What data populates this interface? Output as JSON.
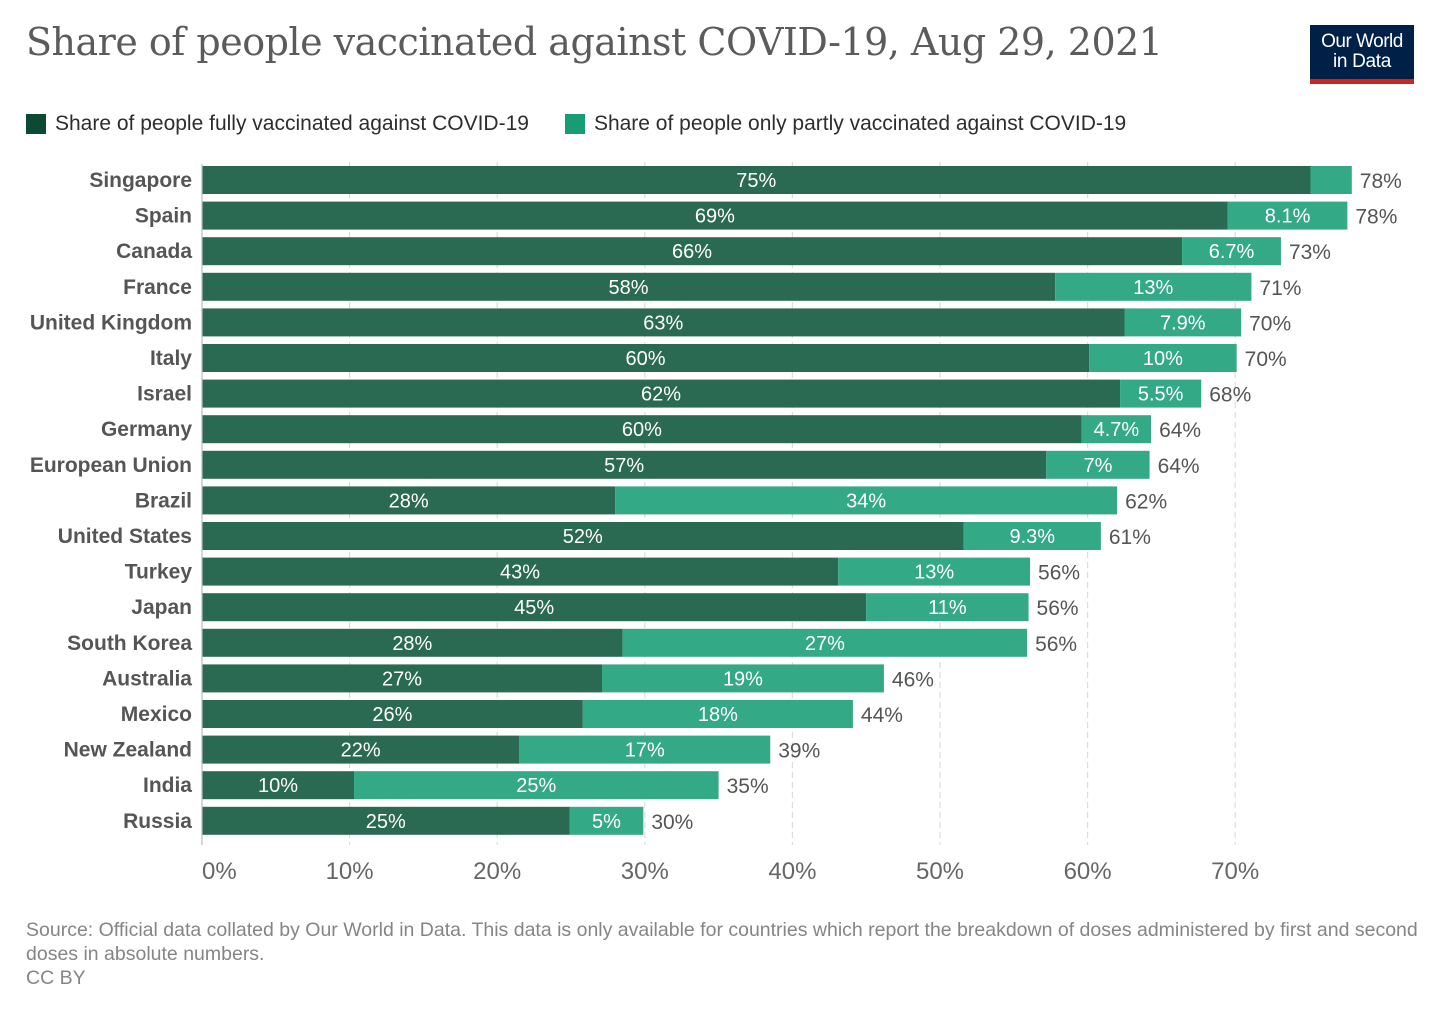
{
  "header": {
    "title": "Share of people vaccinated against COVID-19, Aug 29, 2021",
    "logo_line1": "Our World",
    "logo_line2": "in Data"
  },
  "footer": {
    "source": "Source: Official data collated by Our World in Data. This data is only available for countries which report the breakdown of doses administered by first and second doses in absolute numbers.",
    "license": "CC BY"
  },
  "colors": {
    "fully": "#2a6a52",
    "partly": "#33aa85",
    "legend_fully": "#0c4a34",
    "legend_partly": "#169d74",
    "logo_bg": "#002147",
    "logo_accent": "#ce261e"
  },
  "chart_data": {
    "type": "bar",
    "orientation": "horizontal",
    "stacked": true,
    "title": "Share of people vaccinated against COVID-19, Aug 29, 2021",
    "xlabel": "",
    "ylabel": "",
    "xlim": [
      0,
      78
    ],
    "grid": true,
    "legend_position": "top-left",
    "x_ticks": [
      "0%",
      "10%",
      "20%",
      "30%",
      "40%",
      "50%",
      "60%",
      "70%"
    ],
    "x_tick_values": [
      0,
      10,
      20,
      30,
      40,
      50,
      60,
      70
    ],
    "categories": [
      "Singapore",
      "Spain",
      "Canada",
      "France",
      "United Kingdom",
      "Italy",
      "Israel",
      "Germany",
      "European Union",
      "Brazil",
      "United States",
      "Turkey",
      "Japan",
      "South Korea",
      "Australia",
      "Mexico",
      "New Zealand",
      "India",
      "Russia"
    ],
    "series": [
      {
        "name": "Share of people fully vaccinated against COVID-19",
        "values": [
          75.1,
          69.5,
          66.4,
          57.8,
          62.5,
          60.1,
          62.2,
          59.6,
          57.2,
          28.0,
          51.6,
          43.1,
          45.0,
          28.5,
          27.1,
          25.8,
          21.5,
          10.3,
          24.9
        ],
        "labels": [
          "75%",
          "69%",
          "66%",
          "58%",
          "63%",
          "60%",
          "62%",
          "60%",
          "57%",
          "28%",
          "52%",
          "43%",
          "45%",
          "28%",
          "27%",
          "26%",
          "22%",
          "10%",
          "25%"
        ]
      },
      {
        "name": "Share of people only partly vaccinated against COVID-19",
        "values": [
          2.8,
          8.1,
          6.7,
          13.3,
          7.9,
          10.0,
          5.5,
          4.7,
          7.0,
          34.0,
          9.3,
          13.0,
          11.0,
          27.4,
          19.1,
          18.3,
          17.0,
          24.7,
          5.0
        ],
        "labels": [
          "",
          "8.1%",
          "6.7%",
          "13%",
          "7.9%",
          "10%",
          "5.5%",
          "4.7%",
          "7%",
          "34%",
          "9.3%",
          "13%",
          "11%",
          "27%",
          "19%",
          "18%",
          "17%",
          "25%",
          "5%"
        ]
      }
    ],
    "totals": [
      "78%",
      "78%",
      "73%",
      "71%",
      "70%",
      "70%",
      "68%",
      "64%",
      "64%",
      "62%",
      "61%",
      "56%",
      "56%",
      "56%",
      "46%",
      "44%",
      "39%",
      "35%",
      "30%"
    ]
  }
}
